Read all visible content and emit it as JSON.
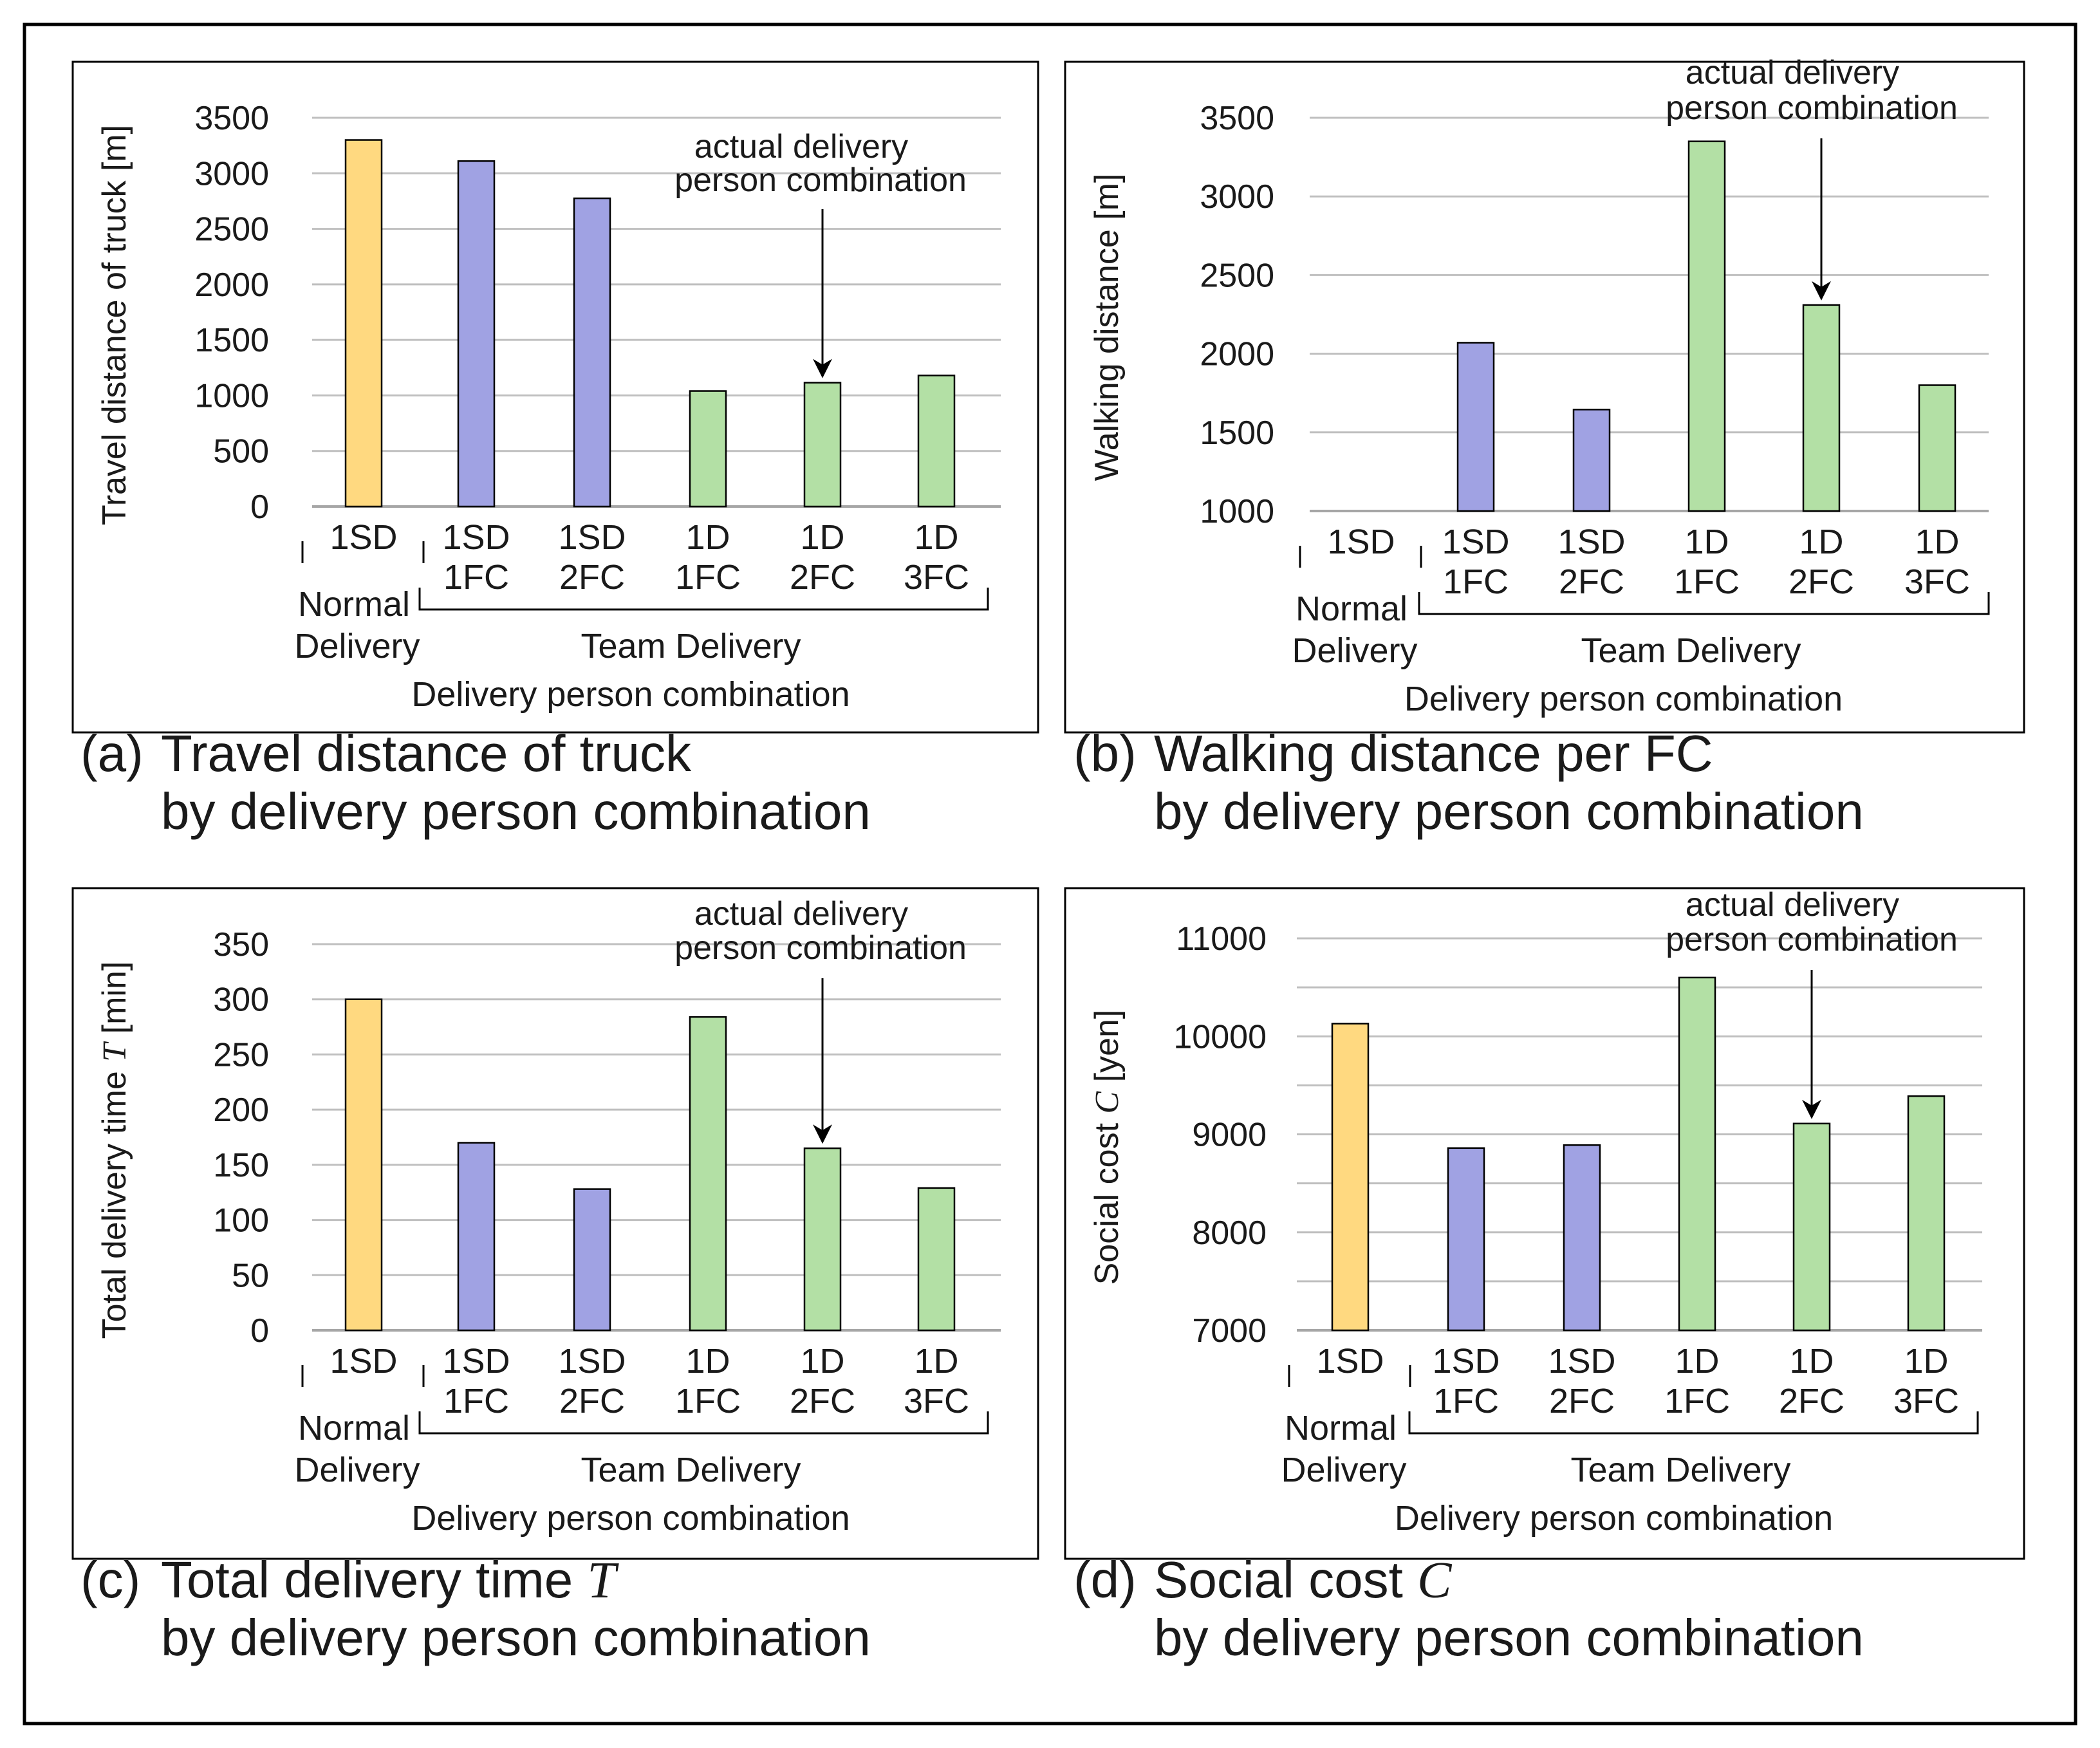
{
  "figure": {
    "colors": {
      "normal": "#ffd980",
      "team_sd": "#a0a2e3",
      "team_d": "#b3e0a5",
      "bar_stroke": "#000000",
      "grid": "#bfbfbf",
      "frame": "#000000"
    },
    "group_labels": {
      "normal_line1": "Normal",
      "normal_line2": "Delivery",
      "team": "Team Delivery"
    }
  },
  "chart_data": [
    {
      "id": "a",
      "type": "bar",
      "categories": [
        [
          "1SD"
        ],
        [
          "1SD",
          "1FC"
        ],
        [
          "1SD",
          "2FC"
        ],
        [
          "1D",
          "1FC"
        ],
        [
          "1D",
          "2FC"
        ],
        [
          "1D",
          "3FC"
        ]
      ],
      "values": [
        3300,
        3110,
        2775,
        1040,
        1115,
        1180
      ],
      "groups": [
        "normal",
        "team_sd",
        "team_sd",
        "team_d",
        "team_d",
        "team_d"
      ],
      "ylim": [
        0,
        3500
      ],
      "yticks": [
        0,
        500,
        1000,
        1500,
        2000,
        2500,
        3000,
        3500
      ],
      "ylabel": "Travel distance of truck [m]",
      "ylabel_var": "",
      "ylabel_tail": "",
      "xlabel": "Delivery person combination",
      "annotation": {
        "line1": "actual delivery",
        "line2": "person combination",
        "target_index": 4
      },
      "caption": {
        "prefix": "(a)",
        "line1": "Travel distance of truck",
        "line1_var": "",
        "line2": "by delivery person combination"
      },
      "grid": true
    },
    {
      "id": "b",
      "type": "bar",
      "categories": [
        [
          "1SD"
        ],
        [
          "1SD",
          "1FC"
        ],
        [
          "1SD",
          "2FC"
        ],
        [
          "1D",
          "1FC"
        ],
        [
          "1D",
          "2FC"
        ],
        [
          "1D",
          "3FC"
        ]
      ],
      "values": [
        null,
        2070,
        1645,
        3350,
        2310,
        1800
      ],
      "groups": [
        "normal",
        "team_sd",
        "team_sd",
        "team_d",
        "team_d",
        "team_d"
      ],
      "ylim": [
        1000,
        3500
      ],
      "yticks": [
        1000,
        1500,
        2000,
        2500,
        3000,
        3500
      ],
      "ylabel": "Walking distance [m]",
      "ylabel_var": "",
      "ylabel_tail": "",
      "xlabel": "Delivery person combination",
      "annotation": {
        "line1": "actual delivery",
        "line2": "person combination",
        "target_index": 4
      },
      "caption": {
        "prefix": "(b)",
        "line1": "Walking distance per FC",
        "line1_var": "",
        "line2": "by delivery person combination"
      },
      "grid": true
    },
    {
      "id": "c",
      "type": "bar",
      "categories": [
        [
          "1SD"
        ],
        [
          "1SD",
          "1FC"
        ],
        [
          "1SD",
          "2FC"
        ],
        [
          "1D",
          "1FC"
        ],
        [
          "1D",
          "2FC"
        ],
        [
          "1D",
          "3FC"
        ]
      ],
      "values": [
        300,
        170,
        128,
        284,
        165,
        129
      ],
      "groups": [
        "normal",
        "team_sd",
        "team_sd",
        "team_d",
        "team_d",
        "team_d"
      ],
      "ylim": [
        0,
        350
      ],
      "yticks": [
        0,
        50,
        100,
        150,
        200,
        250,
        300,
        350
      ],
      "ylabel": "Total delivery time ",
      "ylabel_var": "T",
      "ylabel_tail": " [min]",
      "xlabel": "Delivery person combination",
      "annotation": {
        "line1": "actual delivery",
        "line2": "person combination",
        "target_index": 4
      },
      "caption": {
        "prefix": "(c)",
        "line1": "Total delivery time ",
        "line1_var": "T",
        "line2": "by delivery person combination"
      },
      "grid": true
    },
    {
      "id": "d",
      "type": "bar",
      "categories": [
        [
          "1SD"
        ],
        [
          "1SD",
          "1FC"
        ],
        [
          "1SD",
          "2FC"
        ],
        [
          "1D",
          "1FC"
        ],
        [
          "1D",
          "2FC"
        ],
        [
          "1D",
          "3FC"
        ]
      ],
      "values": [
        10130,
        8860,
        8890,
        10600,
        9110,
        9390
      ],
      "groups": [
        "normal",
        "team_sd",
        "team_sd",
        "team_d",
        "team_d",
        "team_d"
      ],
      "ylim": [
        7000,
        11000
      ],
      "yticks": [
        7000,
        8000,
        9000,
        10000,
        11000
      ],
      "ylabel": "Social cost ",
      "ylabel_var": "C",
      "ylabel_tail": " [yen]",
      "xlabel": "Delivery person combination",
      "annotation": {
        "line1": "actual delivery",
        "line2": "person combination",
        "target_index": 4
      },
      "caption": {
        "prefix": "(d)",
        "line1": "Social cost ",
        "line1_var": "C",
        "line2": "by delivery person combination"
      },
      "grid": true
    }
  ]
}
